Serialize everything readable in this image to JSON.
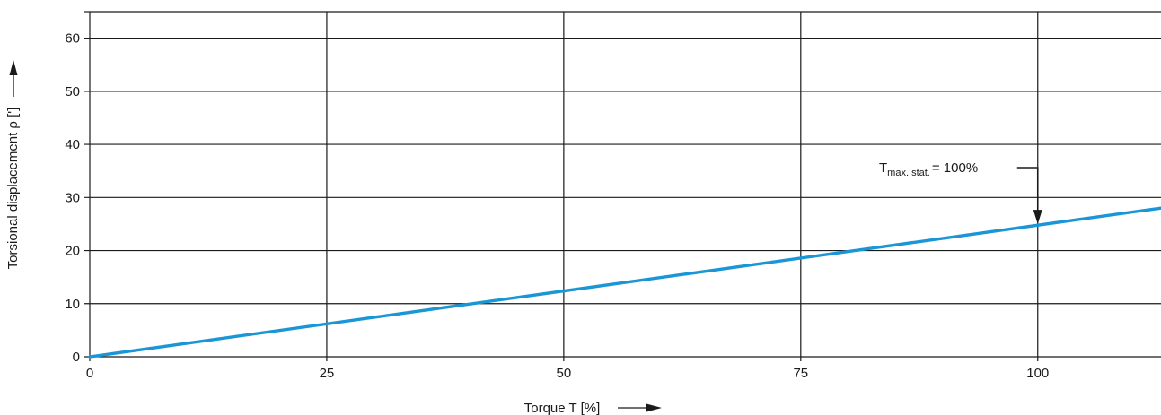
{
  "chart_data": {
    "type": "line",
    "title": "",
    "xlabel": "Torque T [%]",
    "ylabel": "Torsional displacement  ρ [']",
    "xlim": [
      0,
      113
    ],
    "ylim": [
      0,
      65
    ],
    "xticks": [
      0,
      25,
      50,
      75,
      100
    ],
    "yticks": [
      0,
      10,
      20,
      30,
      40,
      50,
      60
    ],
    "grid": true,
    "series": [
      {
        "x": [
          0,
          113
        ],
        "values": [
          0,
          28
        ],
        "color": "#1a96d6"
      }
    ],
    "annotations": [
      {
        "label_main": "T",
        "label_sub": "max. stat.",
        "label_rest": "= 100%",
        "x": 100,
        "y": 24.8
      }
    ],
    "colors": {
      "line": "#1a96d6",
      "grid": "#1a1a1a",
      "text": "#1a1a1a"
    }
  }
}
